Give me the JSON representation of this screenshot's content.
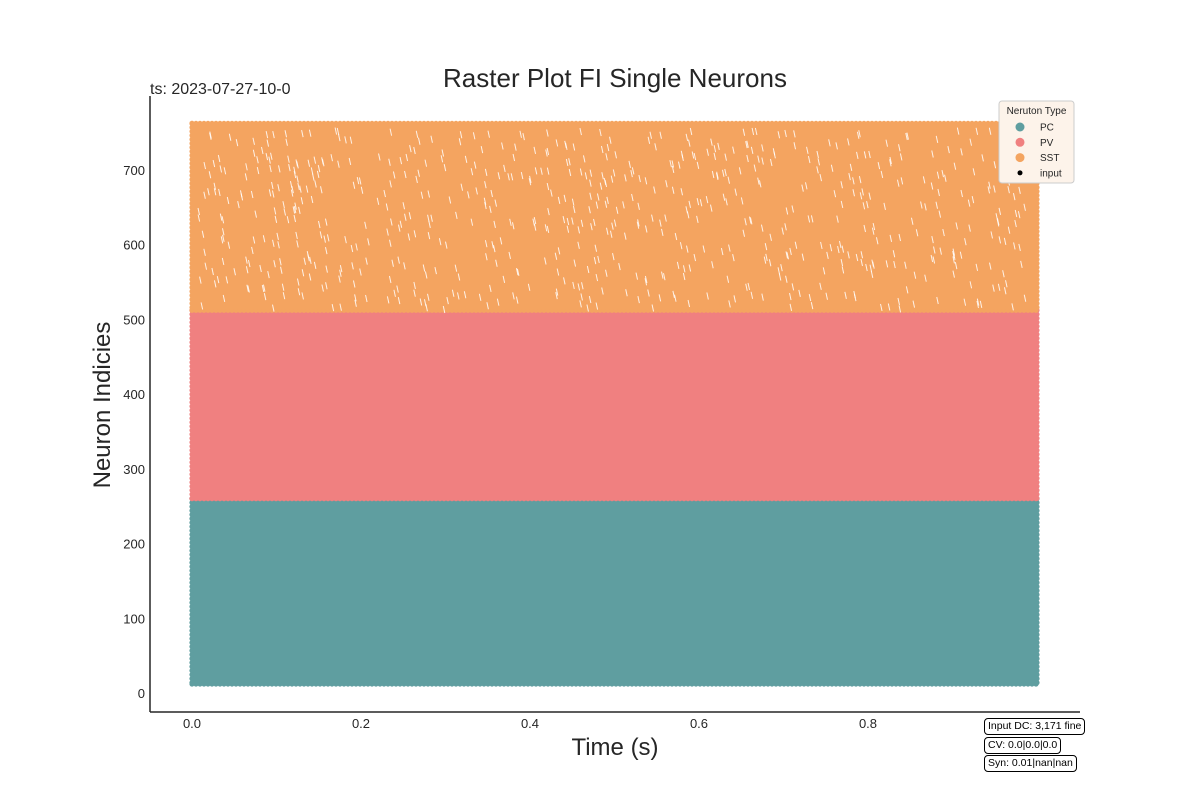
{
  "chart_data": {
    "type": "scatter",
    "title": "Raster Plot FI Single Neurons",
    "subtitle": "ts: 2023-07-27-10-0",
    "xlabel": "Time (s)",
    "ylabel": "Neuron Indicies",
    "xlim": [
      -0.05,
      1.05
    ],
    "ylim": [
      -25,
      800
    ],
    "xticks": [
      "0.0",
      "0.2",
      "0.4",
      "0.6",
      "0.8"
    ],
    "yticks": [
      "0",
      "100",
      "200",
      "300",
      "400",
      "500",
      "600",
      "700"
    ],
    "time_range": [
      0.0,
      1.0
    ],
    "grid": false,
    "legend": {
      "title": "Neruton Type",
      "placement": "top-right",
      "entries": [
        {
          "label": "PC",
          "color": "#5f9ea0"
        },
        {
          "label": "PV",
          "color": "#f08080"
        },
        {
          "label": "SST",
          "color": "#f4a460"
        },
        {
          "label": "input",
          "color": "#000000"
        }
      ]
    },
    "series": [
      {
        "name": "PC",
        "color": "#5f9ea0",
        "neuron_range": [
          12,
          260
        ]
      },
      {
        "name": "PV",
        "color": "#f08080",
        "neuron_range": [
          260,
          512
        ]
      },
      {
        "name": "SST",
        "color": "#f4a460",
        "neuron_range": [
          512,
          762
        ]
      }
    ]
  },
  "info_boxes": {
    "input": "Input DC: 3,171 fine",
    "cv": "CV: 0.0|0.0|0.0",
    "syn": "Syn: 0.01|nan|nan"
  }
}
